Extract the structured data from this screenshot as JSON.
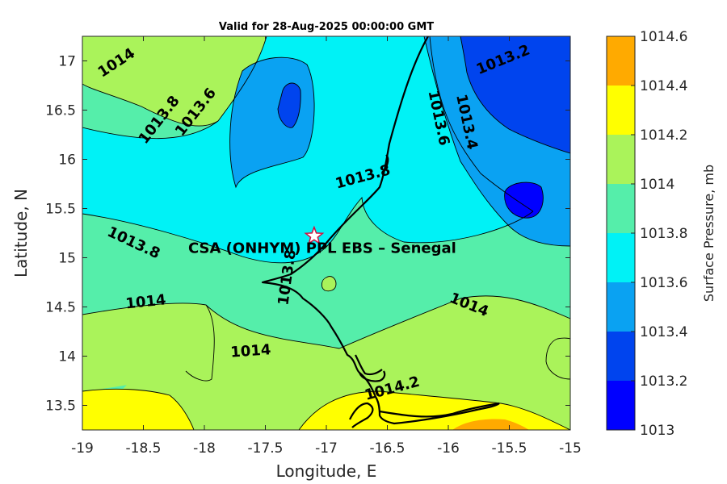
{
  "title": "Valid for 28-Aug-2025 00:00:00 GMT",
  "colors": {
    "band_1013_0": "#0000ff",
    "band_1013_2": "#0044ee",
    "band_1013_4": "#0aa2f2",
    "band_1013_6": "#00f2f6",
    "band_1013_8": "#55eeaa",
    "band_1014_0": "#aaf35a",
    "band_1014_2": "#ffff00",
    "band_1014_4": "#ffaa00",
    "band_1014_6": "#ff5500"
  },
  "chart_data": {
    "type": "filled-contour-map",
    "title": "Valid for 28-Aug-2025 00:00:00 GMT",
    "xlabel": "Longitude, E",
    "ylabel": "Latitude, N",
    "xlim": [
      -19,
      -15
    ],
    "ylim": [
      13.25,
      17.25
    ],
    "xticks": [
      "-19",
      "-18.5",
      "-18",
      "-17.5",
      "-17",
      "-16.5",
      "-16",
      "-15.5",
      "-15"
    ],
    "yticks": [
      "13.5",
      "14",
      "14.5",
      "15",
      "15.5",
      "16",
      "16.5",
      "17"
    ],
    "colorbar": {
      "label": "Surface Pressure, mb",
      "ticks": [
        "1013",
        "1013.2",
        "1013.4",
        "1013.6",
        "1013.8",
        "1014",
        "1014.2",
        "1014.4",
        "1014.6"
      ],
      "range": [
        1013,
        1014.6
      ]
    },
    "contour_labels": [
      {
        "text": "1014",
        "lon": -18.72,
        "lat": 16.98,
        "angle": -33
      },
      {
        "text": "1013.8",
        "lon": -18.37,
        "lat": 16.4,
        "angle": -52
      },
      {
        "text": "1013.6",
        "lon": -18.07,
        "lat": 16.48,
        "angle": -52
      },
      {
        "text": "1013.2",
        "lon": -15.55,
        "lat": 17.01,
        "angle": -22
      },
      {
        "text": "1013.6",
        "lon": -16.08,
        "lat": 16.42,
        "angle": 78
      },
      {
        "text": "1013.4",
        "lon": -15.85,
        "lat": 16.38,
        "angle": 78
      },
      {
        "text": "1013.8",
        "lon": -16.7,
        "lat": 15.82,
        "angle": -15
      },
      {
        "text": "1013.8",
        "lon": -18.58,
        "lat": 15.15,
        "angle": 25
      },
      {
        "text": "1013.8",
        "lon": -17.32,
        "lat": 14.8,
        "angle": -82
      },
      {
        "text": "1014",
        "lon": -18.48,
        "lat": 14.55,
        "angle": -6
      },
      {
        "text": "1014",
        "lon": -17.62,
        "lat": 14.05,
        "angle": -4
      },
      {
        "text": "1014",
        "lon": -15.83,
        "lat": 14.52,
        "angle": 22
      },
      {
        "text": "1014.2",
        "lon": -16.46,
        "lat": 13.67,
        "angle": -15
      }
    ],
    "site": {
      "label": "CSA (ONHYM) PPL EBS  – Senegal",
      "lon": -17.1,
      "lat": 15.22,
      "marker": "star"
    }
  }
}
